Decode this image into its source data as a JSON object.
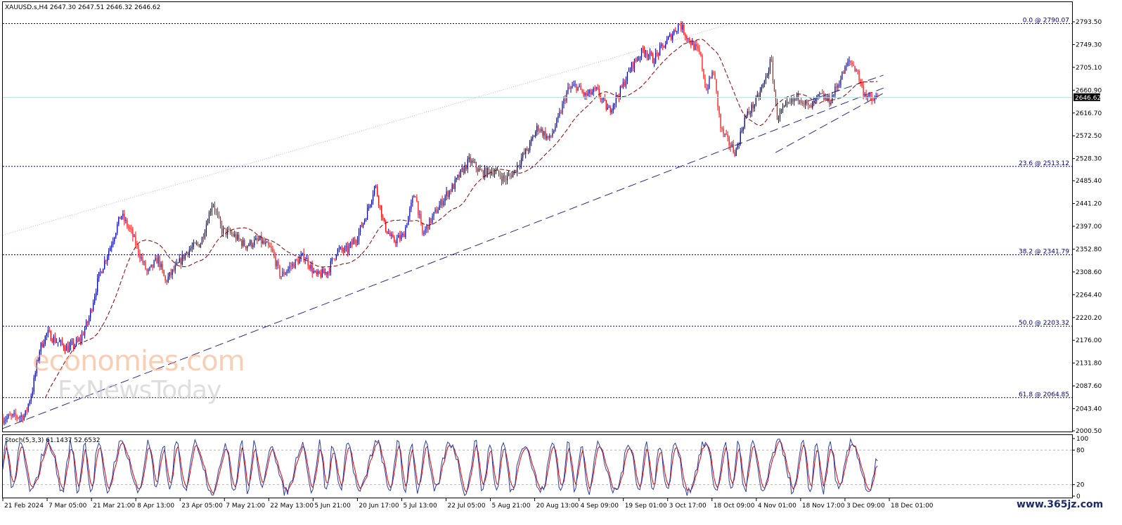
{
  "chart_data": {
    "type": "candlestick",
    "symbol_header": "XAUUSD.s,H4  2647.30 2647.51 2646.32 2646.62",
    "current_price": 2646.62,
    "price_axis": {
      "ylim": [
        2000.5,
        2793.5
      ],
      "ticks": [
        "2793.50",
        "2749.30",
        "2705.10",
        "2660.90",
        "2616.70",
        "2572.50",
        "2528.30",
        "2485.40",
        "2441.20",
        "2397.00",
        "2352.80",
        "2308.60",
        "2264.40",
        "2220.20",
        "2176.00",
        "2131.80",
        "2087.60",
        "2043.40",
        "2000.50"
      ]
    },
    "time_axis": {
      "labels": [
        "21 Feb 2024",
        "7 Mar 05:00",
        "21 Mar 21:00",
        "8 Apr 13:00",
        "23 Apr 05:00",
        "7 May 21:00",
        "22 May 13:00",
        "5 Jun 21:00",
        "20 Jun 17:00",
        "5 Jul 13:00",
        "22 Jul 05:00",
        "5 Aug 21:00",
        "20 Aug 13:00",
        "4 Sep 09:00",
        "19 Sep 01:00",
        "3 Oct 17:00",
        "18 Oct 09:00",
        "4 Nov 01:00",
        "18 Nov 17:00",
        "3 Dec 09:00",
        "18 Dec 01:00"
      ]
    },
    "fibonacci_levels": [
      {
        "label": "0.0 @ 2790.07",
        "price": 2790.07
      },
      {
        "label": "23.6 @ 2513.12",
        "price": 2513.12
      },
      {
        "label": "38.2 @ 2341.79",
        "price": 2341.79
      },
      {
        "label": "50.0 @ 2203.32",
        "price": 2203.32
      },
      {
        "label": "61.8 @ 2064.85",
        "price": 2064.85
      }
    ],
    "price_path": [
      [
        0,
        2025
      ],
      [
        1.5,
        2030
      ],
      [
        2,
        2080
      ],
      [
        2.5,
        2160
      ],
      [
        3,
        2190
      ],
      [
        3.6,
        2175
      ],
      [
        4.4,
        2160
      ],
      [
        5.2,
        2175
      ],
      [
        5.8,
        2215
      ],
      [
        6.5,
        2300
      ],
      [
        7.3,
        2360
      ],
      [
        8,
        2420
      ],
      [
        8.7,
        2385
      ],
      [
        9.3,
        2340
      ],
      [
        9.8,
        2305
      ],
      [
        10.5,
        2335
      ],
      [
        11,
        2290
      ],
      [
        11.8,
        2320
      ],
      [
        12.5,
        2350
      ],
      [
        13.4,
        2365
      ],
      [
        14.2,
        2445
      ],
      [
        14.8,
        2390
      ],
      [
        15.6,
        2380
      ],
      [
        16.4,
        2360
      ],
      [
        17.4,
        2370
      ],
      [
        18.2,
        2350
      ],
      [
        18.8,
        2300
      ],
      [
        19.5,
        2320
      ],
      [
        20.4,
        2340
      ],
      [
        21.2,
        2300
      ],
      [
        22,
        2310
      ],
      [
        22.6,
        2350
      ],
      [
        23.3,
        2350
      ],
      [
        24,
        2378
      ],
      [
        24.6,
        2420
      ],
      [
        25.2,
        2478
      ],
      [
        25.8,
        2400
      ],
      [
        26.4,
        2368
      ],
      [
        27.1,
        2378
      ],
      [
        27.9,
        2465
      ],
      [
        28.4,
        2380
      ],
      [
        29.2,
        2420
      ],
      [
        30,
        2458
      ],
      [
        30.5,
        2475
      ],
      [
        31,
        2500
      ],
      [
        31.6,
        2525
      ],
      [
        32.4,
        2500
      ],
      [
        33.2,
        2505
      ],
      [
        34,
        2488
      ],
      [
        34.6,
        2502
      ],
      [
        35,
        2525
      ],
      [
        35.6,
        2550
      ],
      [
        36.2,
        2590
      ],
      [
        37,
        2565
      ],
      [
        37.6,
        2605
      ],
      [
        38.2,
        2660
      ],
      [
        38.8,
        2670
      ],
      [
        39.4,
        2650
      ],
      [
        40.2,
        2660
      ],
      [
        41,
        2620
      ],
      [
        41.8,
        2660
      ],
      [
        42.6,
        2710
      ],
      [
        43.4,
        2740
      ],
      [
        44,
        2720
      ],
      [
        44.8,
        2750
      ],
      [
        45.8,
        2790
      ],
      [
        46.4,
        2760
      ],
      [
        47.2,
        2730
      ],
      [
        47.6,
        2660
      ],
      [
        48.1,
        2700
      ],
      [
        48.6,
        2585
      ],
      [
        49.1,
        2560
      ],
      [
        49.6,
        2540
      ],
      [
        50.2,
        2605
      ],
      [
        51,
        2640
      ],
      [
        51.6,
        2680
      ],
      [
        52,
        2720
      ],
      [
        52.4,
        2610
      ],
      [
        53.1,
        2630
      ],
      [
        53.9,
        2650
      ],
      [
        54.6,
        2625
      ],
      [
        55.3,
        2650
      ],
      [
        56,
        2640
      ],
      [
        56.8,
        2690
      ],
      [
        57.3,
        2718
      ],
      [
        57.8,
        2700
      ],
      [
        58.2,
        2660
      ],
      [
        58.8,
        2640
      ],
      [
        59.2,
        2646.62
      ]
    ],
    "trendlines": [
      {
        "style": "dashed",
        "from": [
          0,
          2005
        ],
        "to": [
          59.6,
          2665
        ]
      },
      {
        "style": "dashed",
        "from": [
          52.3,
          2540
        ],
        "to": [
          59.6,
          2655
        ]
      },
      {
        "style": "dashed",
        "from": [
          54.5,
          2640
        ],
        "to": [
          59.6,
          2690
        ]
      },
      {
        "style": "dotted",
        "from": [
          0,
          2380
        ],
        "to": [
          49.3,
          2790
        ]
      }
    ],
    "stochastic": {
      "label": "Stoch(5,3,3) 61.1437 52.6532",
      "main": 61.1437,
      "signal": 52.6532,
      "ylim": [
        0,
        100
      ],
      "levels": [
        80,
        20
      ],
      "ticks": [
        "100",
        "80",
        "20",
        "0"
      ]
    },
    "colors": {
      "bear_candle": "#ff0000",
      "bull_candle": "#0000aa",
      "moving_average": "#8b0000",
      "trendline": "#2b2b8c",
      "fib_line": "#000080",
      "current_price_line": "#aee0e6"
    }
  },
  "watermark": {
    "line1": "economies.com",
    "line2": "FxNewsToday"
  },
  "corner_watermark": "www.365jz.com"
}
